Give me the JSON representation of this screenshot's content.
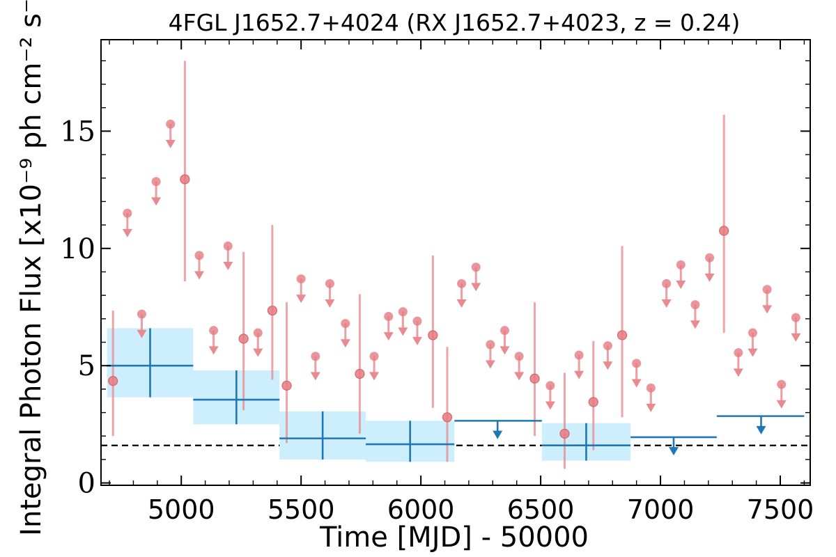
{
  "chart_data": {
    "type": "scatter",
    "title": "4FGL J1652.7+4024 (RX J1652.7+4023, z = 0.24)",
    "xlabel": "Time [MJD] - 50000",
    "ylabel": "Integral Photon Flux [x10⁻⁹ ph cm⁻² s⁻¹]",
    "xlim": [
      4665,
      7625
    ],
    "ylim": [
      -0.1,
      18.9
    ],
    "x_ticks": [
      "5000",
      "5500",
      "6000",
      "6500",
      "7000",
      "7500"
    ],
    "y_ticks": [
      "0",
      "5",
      "10",
      "15"
    ],
    "reference_line": 1.6,
    "colors": {
      "short_bins": "#e8868b",
      "long_bins": "#1f77b4",
      "long_band": "#cdeefc"
    },
    "short_bins_detections": [
      {
        "x": 4715,
        "y": 4.35,
        "lo": 2.0,
        "hi": 7.35
      },
      {
        "x": 5015,
        "y": 12.95,
        "lo": 8.6,
        "hi": 18.0
      },
      {
        "x": 5260,
        "y": 6.15,
        "lo": 3.1,
        "hi": 9.85
      },
      {
        "x": 5380,
        "y": 7.35,
        "lo": 4.4,
        "hi": 11.0
      },
      {
        "x": 5440,
        "y": 4.15,
        "lo": 1.7,
        "hi": 7.7
      },
      {
        "x": 5745,
        "y": 4.65,
        "lo": 2.1,
        "hi": 8.05
      },
      {
        "x": 6050,
        "y": 6.3,
        "lo": 3.2,
        "hi": 9.7
      },
      {
        "x": 6110,
        "y": 2.8,
        "lo": 0.9,
        "hi": 5.8
      },
      {
        "x": 6475,
        "y": 4.45,
        "lo": 2.0,
        "hi": 7.7
      },
      {
        "x": 6600,
        "y": 2.1,
        "lo": 0.6,
        "hi": 4.7
      },
      {
        "x": 6720,
        "y": 3.45,
        "lo": 1.4,
        "hi": 6.05
      },
      {
        "x": 6840,
        "y": 6.3,
        "lo": 2.8,
        "hi": 10.1
      },
      {
        "x": 7265,
        "y": 10.75,
        "lo": 6.4,
        "hi": 15.7
      }
    ],
    "short_bins_upper_limits": [
      {
        "x": 4775,
        "y": 11.5
      },
      {
        "x": 4835,
        "y": 7.2
      },
      {
        "x": 4895,
        "y": 12.85
      },
      {
        "x": 4955,
        "y": 15.3
      },
      {
        "x": 5075,
        "y": 9.7
      },
      {
        "x": 5135,
        "y": 6.5
      },
      {
        "x": 5195,
        "y": 10.1
      },
      {
        "x": 5320,
        "y": 6.4
      },
      {
        "x": 5500,
        "y": 8.7
      },
      {
        "x": 5560,
        "y": 5.4
      },
      {
        "x": 5620,
        "y": 8.5
      },
      {
        "x": 5685,
        "y": 6.8
      },
      {
        "x": 5805,
        "y": 5.4
      },
      {
        "x": 5865,
        "y": 7.1
      },
      {
        "x": 5925,
        "y": 7.3
      },
      {
        "x": 5985,
        "y": 6.9
      },
      {
        "x": 6170,
        "y": 8.5
      },
      {
        "x": 6230,
        "y": 9.2
      },
      {
        "x": 6290,
        "y": 5.9
      },
      {
        "x": 6350,
        "y": 6.5
      },
      {
        "x": 6410,
        "y": 5.4
      },
      {
        "x": 6540,
        "y": 4.15
      },
      {
        "x": 6660,
        "y": 5.45
      },
      {
        "x": 6780,
        "y": 5.85
      },
      {
        "x": 6900,
        "y": 5.1
      },
      {
        "x": 6960,
        "y": 4.05
      },
      {
        "x": 7025,
        "y": 8.5
      },
      {
        "x": 7085,
        "y": 9.3
      },
      {
        "x": 7145,
        "y": 7.6
      },
      {
        "x": 7205,
        "y": 9.6
      },
      {
        "x": 7325,
        "y": 5.55
      },
      {
        "x": 7385,
        "y": 6.4
      },
      {
        "x": 7445,
        "y": 8.25
      },
      {
        "x": 7505,
        "y": 4.2
      },
      {
        "x": 7565,
        "y": 7.05
      }
    ],
    "long_bins_detections": [
      {
        "x": 4870,
        "x0": 4690,
        "x1": 5050,
        "y": 5.0,
        "lo": 3.65,
        "hi": 6.6
      },
      {
        "x": 5230,
        "x0": 5050,
        "x1": 5410,
        "y": 3.55,
        "lo": 2.5,
        "hi": 4.8
      },
      {
        "x": 5590,
        "x0": 5410,
        "x1": 5770,
        "y": 1.9,
        "lo": 1.0,
        "hi": 3.05
      },
      {
        "x": 5955,
        "x0": 5770,
        "x1": 6140,
        "y": 1.65,
        "lo": 0.9,
        "hi": 2.65
      },
      {
        "x": 6690,
        "x0": 6505,
        "x1": 6875,
        "y": 1.6,
        "lo": 0.95,
        "hi": 2.55
      }
    ],
    "long_bins_upper_limits": [
      {
        "x": 6320,
        "x0": 6140,
        "x1": 6505,
        "y": 2.65
      },
      {
        "x": 7055,
        "x0": 6875,
        "x1": 7235,
        "y": 1.95
      },
      {
        "x": 7420,
        "x0": 7235,
        "x1": 7600,
        "y": 2.85
      }
    ]
  }
}
